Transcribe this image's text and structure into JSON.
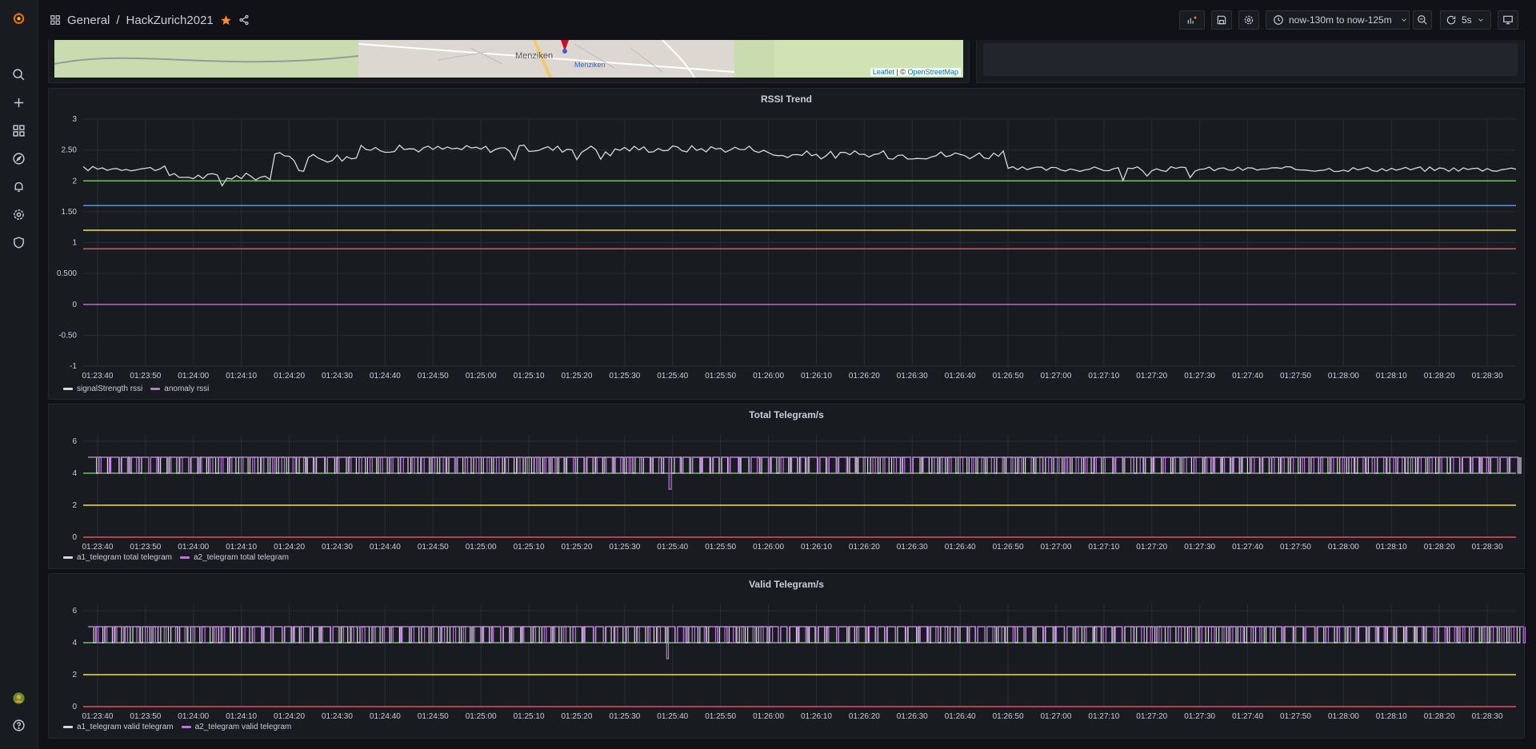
{
  "header": {
    "breadcrumb_root": "General",
    "breadcrumb_sep": "/",
    "dashboard_title": "HackZurich2021",
    "time_range": "now-130m to now-125m",
    "refresh_interval": "5s"
  },
  "map": {
    "label_town": "Menziken",
    "label_pin": "Menziken",
    "attribution_leaflet": "Leaflet",
    "attribution_sep": "| ©",
    "attribution_osm": "OpenStreetMap"
  },
  "colors": {
    "white": "#d8d9da",
    "green": "#73bf69",
    "blue": "#5794f2",
    "yellow": "#fade2a",
    "red": "#f2495c",
    "purple": "#b877d9",
    "grid": "#2a2d33"
  },
  "x_ticks": [
    "01:23:40",
    "01:23:50",
    "01:24:00",
    "01:24:10",
    "01:24:20",
    "01:24:30",
    "01:24:40",
    "01:24:50",
    "01:25:00",
    "01:25:10",
    "01:25:20",
    "01:25:30",
    "01:25:40",
    "01:25:50",
    "01:26:00",
    "01:26:10",
    "01:26:20",
    "01:26:30",
    "01:26:40",
    "01:26:50",
    "01:27:00",
    "01:27:10",
    "01:27:20",
    "01:27:30",
    "01:27:40",
    "01:27:50",
    "01:28:00",
    "01:28:10",
    "01:28:20",
    "01:28:30"
  ],
  "chart_data": [
    {
      "type": "line",
      "title": "RSSI Trend",
      "x_range": [
        "01:23:37",
        "01:28:36"
      ],
      "ylim": [
        -1,
        3
      ],
      "y_ticks": [
        "3",
        "2.50",
        "2",
        "1.50",
        "1",
        "0.500",
        "0",
        "-0.50",
        "-1"
      ],
      "y_tick_values": [
        3,
        2.5,
        2,
        1.5,
        1,
        0.5,
        0,
        -0.5,
        -1
      ],
      "thresholds": [
        {
          "value": 2.0,
          "color": "green"
        },
        {
          "value": 1.6,
          "color": "blue"
        },
        {
          "value": 1.2,
          "color": "yellow"
        },
        {
          "value": 0.9,
          "color": "red"
        }
      ],
      "series": [
        {
          "name": "signalStrength rssi",
          "color": "white",
          "segments": [
            {
              "t0": "01:23:37",
              "t1": "01:23:55",
              "base": 2.2,
              "amp": 0.04
            },
            {
              "t0": "01:23:55",
              "t1": "01:24:17",
              "base": 2.07,
              "amp": 0.06
            },
            {
              "t0": "01:24:17",
              "t1": "01:24:35",
              "base": 2.38,
              "amp": 0.08
            },
            {
              "t0": "01:24:35",
              "t1": "01:26:00",
              "base": 2.52,
              "amp": 0.06
            },
            {
              "t0": "01:26:00",
              "t1": "01:26:50",
              "base": 2.42,
              "amp": 0.07
            },
            {
              "t0": "01:26:50",
              "t1": "01:28:36",
              "base": 2.19,
              "amp": 0.04
            }
          ]
        },
        {
          "name": "anomaly rssi",
          "color": "purple",
          "constant": 0
        }
      ]
    },
    {
      "type": "line",
      "title": "Total Telegram/s",
      "x_range": [
        "01:23:37",
        "01:28:36"
      ],
      "ylim": [
        0,
        6.4
      ],
      "y_ticks": [
        "6",
        "4",
        "2",
        "0"
      ],
      "y_tick_values": [
        6,
        4,
        2,
        0
      ],
      "thresholds": [
        {
          "value": 4,
          "color": "green"
        },
        {
          "value": 2,
          "color": "yellow"
        },
        {
          "value": 0,
          "color": "red"
        }
      ],
      "series": [
        {
          "name": "a1_telegram total telegram",
          "color": "white",
          "pattern": "square",
          "low": 4,
          "high": 5
        },
        {
          "name": "a2_telegram total telegram",
          "color": "purple",
          "pattern": "square",
          "low": 4,
          "high": 5,
          "dip_at": "01:25:39",
          "dip_value": 3
        }
      ]
    },
    {
      "type": "line",
      "title": "Valid Telegram/s",
      "x_range": [
        "01:23:37",
        "01:28:36"
      ],
      "ylim": [
        0,
        6.4
      ],
      "y_ticks": [
        "6",
        "4",
        "2",
        "0"
      ],
      "y_tick_values": [
        6,
        4,
        2,
        0
      ],
      "thresholds": [
        {
          "value": 4,
          "color": "green"
        },
        {
          "value": 2,
          "color": "yellow"
        },
        {
          "value": 0,
          "color": "red"
        }
      ],
      "series": [
        {
          "name": "a1_telegram valid telegram",
          "color": "white",
          "pattern": "square",
          "low": 4,
          "high": 5
        },
        {
          "name": "a2_telegram valid telegram",
          "color": "purple",
          "pattern": "square",
          "low": 4,
          "high": 5,
          "dip_at": "01:25:39",
          "dip_value": 3
        }
      ]
    }
  ]
}
